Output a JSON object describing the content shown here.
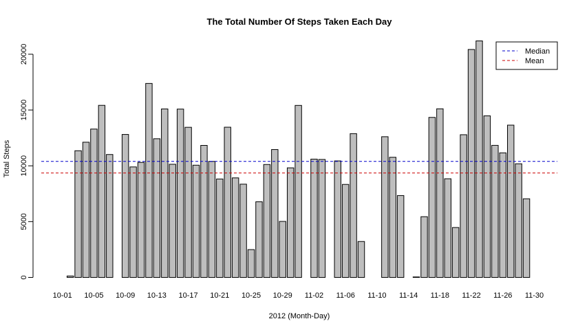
{
  "chart_data": {
    "type": "bar",
    "title": "The Total Number Of Steps Taken Each Day",
    "xlabel": "2012 (Month-Day)",
    "ylabel": "Total Steps",
    "ylim": [
      0,
      21194
    ],
    "y_ticks": [
      0,
      5000,
      10000,
      15000,
      20000
    ],
    "grid": false,
    "legend_position": "top-right",
    "categories": [
      "10-01",
      "10-02",
      "10-03",
      "10-04",
      "10-05",
      "10-06",
      "10-07",
      "10-08",
      "10-09",
      "10-10",
      "10-11",
      "10-12",
      "10-13",
      "10-14",
      "10-15",
      "10-16",
      "10-17",
      "10-18",
      "10-19",
      "10-20",
      "10-21",
      "10-22",
      "10-23",
      "10-24",
      "10-25",
      "10-26",
      "10-27",
      "10-28",
      "10-29",
      "10-30",
      "10-31",
      "11-01",
      "11-02",
      "11-03",
      "11-04",
      "11-05",
      "11-06",
      "11-07",
      "11-08",
      "11-09",
      "11-10",
      "11-11",
      "11-12",
      "11-13",
      "11-14",
      "11-15",
      "11-16",
      "11-17",
      "11-18",
      "11-19",
      "11-20",
      "11-21",
      "11-22",
      "11-23",
      "11-24",
      "11-25",
      "11-26",
      "11-27",
      "11-28",
      "11-29",
      "11-30"
    ],
    "tick_labels": [
      "10-01",
      "10-05",
      "10-09",
      "10-13",
      "10-17",
      "10-21",
      "10-25",
      "10-29",
      "11-02",
      "11-06",
      "11-10",
      "11-14",
      "11-18",
      "11-22",
      "11-26",
      "11-30"
    ],
    "values": [
      0,
      126,
      11352,
      12116,
      13294,
      15420,
      11015,
      0,
      12811,
      9900,
      10304,
      17382,
      12426,
      15098,
      10139,
      15084,
      13452,
      10056,
      11829,
      10395,
      8821,
      13460,
      8918,
      8355,
      2492,
      6778,
      10119,
      11458,
      5018,
      9819,
      15414,
      0,
      10600,
      10571,
      0,
      10439,
      8334,
      12883,
      3219,
      0,
      0,
      12608,
      10765,
      7336,
      0,
      41,
      5441,
      14339,
      15110,
      8841,
      4472,
      12787,
      20427,
      21194,
      14478,
      11834,
      11162,
      13646,
      10183,
      7047,
      0
    ],
    "reference_lines": [
      {
        "name": "Median",
        "value": 10395,
        "color": "#0000cc",
        "style": "dashed"
      },
      {
        "name": "Mean",
        "value": 9354,
        "color": "#cc0000",
        "style": "dashed"
      }
    ],
    "bar_fill": "#bebebe",
    "bar_stroke": "#000000"
  }
}
